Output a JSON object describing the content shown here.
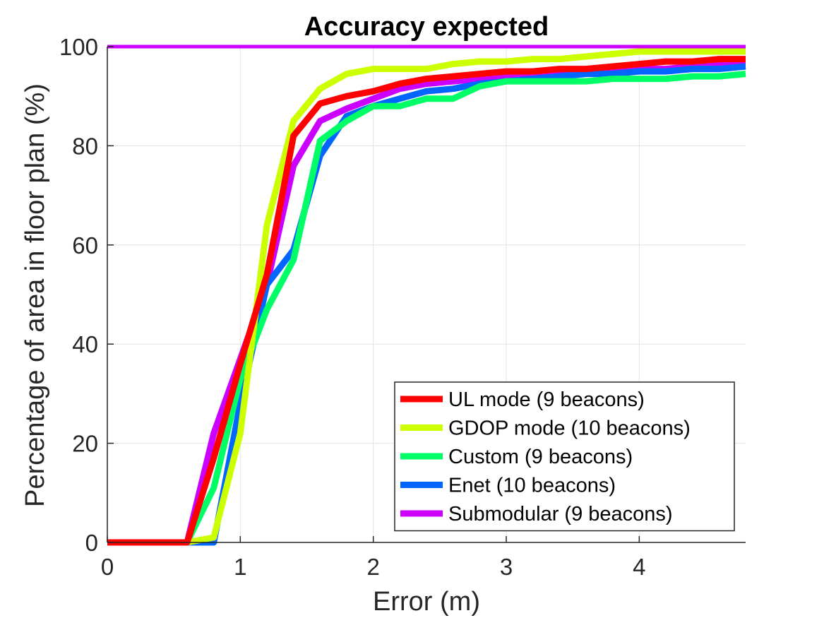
{
  "chart_data": {
    "type": "line",
    "title": "Accuracy expected",
    "xlabel": "Error (m)",
    "ylabel": "Percentage of area in floor plan (%)",
    "xlim": [
      0,
      4.8
    ],
    "ylim": [
      0,
      100
    ],
    "xticks": [
      0,
      1,
      2,
      3,
      4
    ],
    "yticks": [
      0,
      20,
      40,
      60,
      80,
      100
    ],
    "grid": true,
    "legend_position": "bottom-right",
    "reference_line": {
      "y": 100,
      "color": "#cc00ff"
    },
    "series": [
      {
        "name": "UL mode (9 beacons)",
        "color": "#ff0000",
        "x": [
          0,
          0.6,
          0.8,
          1.0,
          1.2,
          1.4,
          1.6,
          1.8,
          2.0,
          2.2,
          2.4,
          2.6,
          2.8,
          3.0,
          3.2,
          3.4,
          3.6,
          3.8,
          4.0,
          4.2,
          4.4,
          4.6,
          4.8
        ],
        "y": [
          0,
          0,
          17,
          36,
          54,
          82,
          88.5,
          90,
          91,
          92.5,
          93.5,
          94,
          94.5,
          95,
          95,
          95.5,
          95.5,
          96,
          96.5,
          97,
          97,
          97.5,
          97.5
        ]
      },
      {
        "name": "GDOP mode (10 beacons)",
        "color": "#ccff00",
        "x": [
          0,
          0.6,
          0.8,
          1.0,
          1.2,
          1.4,
          1.6,
          1.8,
          2.0,
          2.2,
          2.4,
          2.6,
          2.8,
          3.0,
          3.2,
          3.4,
          3.6,
          3.8,
          4.0,
          4.2,
          4.4,
          4.6,
          4.8
        ],
        "y": [
          0,
          0,
          1,
          22,
          64,
          85,
          91.5,
          94.5,
          95.5,
          95.5,
          95.5,
          96.5,
          97,
          97,
          97.5,
          97.5,
          98,
          98.5,
          99,
          99,
          99,
          99,
          99
        ]
      },
      {
        "name": "Custom (9 beacons)",
        "color": "#00ff66",
        "x": [
          0,
          0.6,
          0.8,
          1.0,
          1.2,
          1.4,
          1.6,
          1.8,
          2.0,
          2.2,
          2.4,
          2.6,
          2.8,
          3.0,
          3.2,
          3.4,
          3.6,
          3.8,
          4.0,
          4.2,
          4.4,
          4.6,
          4.8
        ],
        "y": [
          0,
          0,
          11,
          33,
          47,
          57,
          81,
          85,
          88,
          88,
          89.5,
          89.5,
          92,
          93,
          93,
          93,
          93,
          93.5,
          93.5,
          93.5,
          94,
          94,
          94.5
        ]
      },
      {
        "name": "Enet (10 beacons)",
        "color": "#0066ff",
        "x": [
          0,
          0.6,
          0.8,
          1.0,
          1.2,
          1.4,
          1.6,
          1.8,
          2.0,
          2.2,
          2.4,
          2.6,
          2.8,
          3.0,
          3.2,
          3.4,
          3.6,
          3.8,
          4.0,
          4.2,
          4.4,
          4.6,
          4.8
        ],
        "y": [
          0,
          0,
          0,
          28,
          52,
          59,
          78,
          86,
          88,
          89.5,
          91,
          91.5,
          92.5,
          93,
          93.5,
          94,
          94.5,
          94.5,
          95,
          95,
          95.5,
          95.5,
          96
        ]
      },
      {
        "name": "Submodular (9 beacons)",
        "color": "#cc00ff",
        "x": [
          0,
          0.6,
          0.8,
          1.0,
          1.2,
          1.4,
          1.6,
          1.8,
          2.0,
          2.2,
          2.4,
          2.6,
          2.8,
          3.0,
          3.2,
          3.4,
          3.6,
          3.8,
          4.0,
          4.2,
          4.4,
          4.6,
          4.8
        ],
        "y": [
          0,
          0,
          22,
          37,
          52,
          76,
          85,
          87.5,
          89.5,
          91.5,
          92.5,
          93,
          93.5,
          94,
          94.5,
          94.5,
          95,
          95,
          95.5,
          95.5,
          96,
          96.5,
          96.5
        ]
      }
    ]
  }
}
